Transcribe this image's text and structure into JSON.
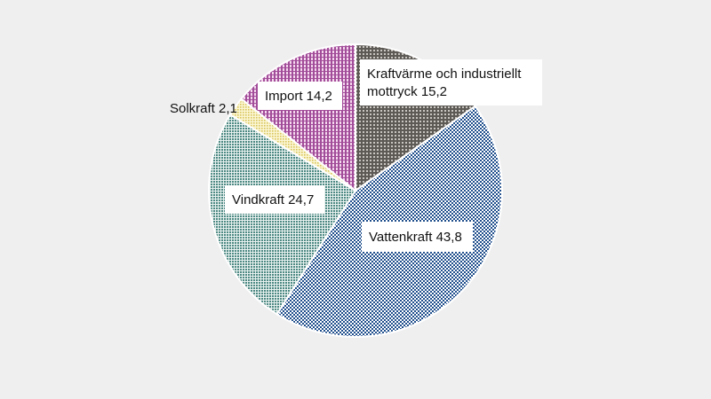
{
  "chart_data": {
    "type": "pie",
    "slices": [
      {
        "label": "Kraftvärme och industriellt mottryck",
        "value": 15.2,
        "label_lines": [
          "Kraftvärme och industriellt",
          "mottryck 15,2"
        ],
        "color": "#6f6a66",
        "pattern": "grid-dark"
      },
      {
        "label": "Vattenkraft",
        "value": 43.8,
        "label_lines": [
          "Vattenkraft 43,8"
        ],
        "color": "#1f4e8c",
        "pattern": "checker-blue"
      },
      {
        "label": "Vindkraft",
        "value": 24.7,
        "label_lines": [
          "Vindkraft 24,7"
        ],
        "color": "#5b9690",
        "pattern": "dots-teal"
      },
      {
        "label": "Solkraft",
        "value": 2.1,
        "label_lines": [
          "Solkraft 2,1"
        ],
        "color": "#e7d77a",
        "pattern": "dots-yellow"
      },
      {
        "label": "Import",
        "value": 14.2,
        "label_lines": [
          "Import 14,2"
        ],
        "color": "#b05ca8",
        "pattern": "grid-purple"
      }
    ]
  }
}
